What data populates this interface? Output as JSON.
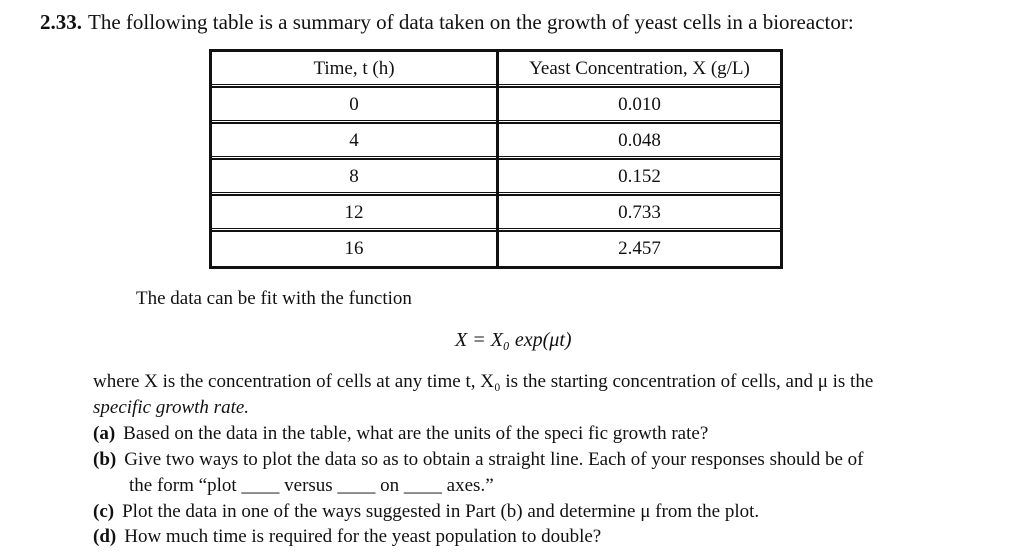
{
  "problem": {
    "number": "2.33.",
    "intro": "The following table is a summary of data taken on the growth of yeast cells in a bioreactor:"
  },
  "table": {
    "headers": [
      "Time, t (h)",
      "Yeast Concentration, X (g/L)"
    ],
    "rows": [
      [
        "0",
        "0.010"
      ],
      [
        "4",
        "0.048"
      ],
      [
        "8",
        "0.152"
      ],
      [
        "12",
        "0.733"
      ],
      [
        "16",
        "2.457"
      ]
    ]
  },
  "text": {
    "fit_intro": "The data can be fit with the function",
    "equation": "X = X₀ exp(μt)",
    "where_line1": "where X is the concentration of cells at any time t, X₀ is the starting concentration of cells, and μ is the",
    "where_line2": "specific growth rate."
  },
  "questions": [
    {
      "label": "(a)",
      "text": "Based on the data in the table, what are the units of the speci fic growth rate?"
    },
    {
      "label": "(b)",
      "text": "Give two ways to plot the data so as to obtain a straight line. Each of your responses should be of",
      "text2": "the form “plot ____ versus ____ on ____ axes.”"
    },
    {
      "label": "(c)",
      "text": "Plot the data in one of the ways suggested in Part (b) and determine μ from the plot."
    },
    {
      "label": "(d)",
      "text": "How much time is required for the yeast population to double?"
    }
  ]
}
